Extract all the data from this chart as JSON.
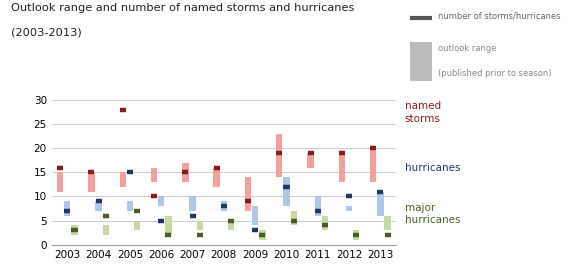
{
  "years": [
    2003,
    2004,
    2005,
    2006,
    2007,
    2008,
    2009,
    2010,
    2011,
    2012,
    2013
  ],
  "title_line1": "Outlook range and number of named storms and hurricanes",
  "title_line2": "(2003-2013)",
  "named_storms_outlook_low": [
    11,
    11,
    12,
    13,
    13,
    12,
    7,
    14,
    16,
    13,
    13
  ],
  "named_storms_outlook_high": [
    15,
    15,
    15,
    16,
    17,
    16,
    14,
    23,
    19,
    19,
    20
  ],
  "named_storms_actual": [
    16,
    15,
    28,
    10,
    15,
    16,
    9,
    19,
    19,
    19,
    20
  ],
  "hurricanes_outlook_low": [
    6,
    7,
    7,
    8,
    7,
    7,
    4,
    8,
    6,
    7,
    6
  ],
  "hurricanes_outlook_high": [
    9,
    9,
    9,
    10,
    10,
    9,
    8,
    14,
    10,
    8,
    11
  ],
  "hurricanes_actual": [
    7,
    9,
    15,
    5,
    6,
    8,
    3,
    12,
    7,
    10,
    11
  ],
  "major_hurricanes_outlook_low": [
    2,
    2,
    3,
    2,
    3,
    3,
    1,
    4,
    3,
    1,
    3
  ],
  "major_hurricanes_outlook_high": [
    4,
    4,
    5,
    6,
    5,
    5,
    3,
    7,
    6,
    3,
    6
  ],
  "major_hurricanes_actual": [
    3,
    6,
    7,
    2,
    2,
    5,
    2,
    5,
    4,
    2,
    2
  ],
  "named_storms_color_range": "#f2a0a0",
  "named_storms_color_actual": "#8b1a1a",
  "hurricanes_color_range": "#aec6e8",
  "hurricanes_color_actual": "#1f3864",
  "major_hurricanes_color_range": "#c5d9a0",
  "major_hurricanes_color_actual": "#4a5e20",
  "bar_width": 0.23,
  "ylim": [
    0,
    30
  ],
  "yticks": [
    0,
    5,
    10,
    15,
    20,
    25,
    30
  ],
  "background_color": "#ffffff",
  "grid_color": "#cccccc"
}
